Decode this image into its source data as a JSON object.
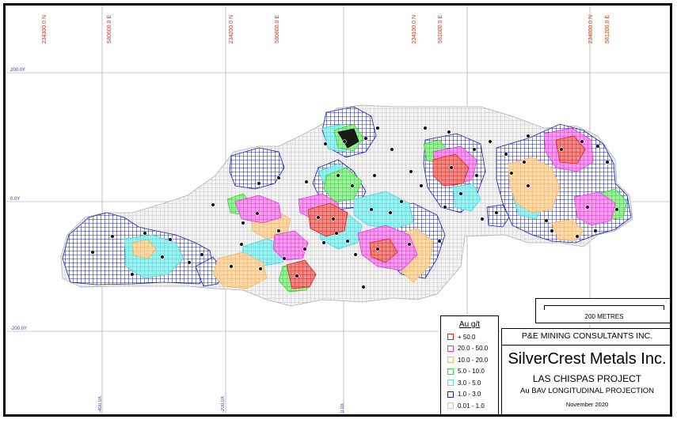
{
  "easting_labels": [
    "234300.0 N",
    "580600.0 E",
    "234200.0 N",
    "580800.0 E",
    "234100.0 N",
    "581000.0 E",
    "234000.0 N",
    "581200.0 E"
  ],
  "elevation_labels": [
    "200.0Y",
    "0.0Y",
    "-200.0Y"
  ],
  "bottom_labels": [
    "-400.0X",
    "-200.0X",
    "0.0X"
  ],
  "legend": {
    "title": "Au g/t",
    "items": [
      {
        "label": "+ 50.0",
        "color": "#e0241c"
      },
      {
        "label": "20.0 - 50.0",
        "color": "#e633d8"
      },
      {
        "label": "10.0 - 20.0",
        "color": "#f5b86a"
      },
      {
        "label": "5.0 - 10.0",
        "color": "#36d83a"
      },
      {
        "label": "3.0 - 5.0",
        "color": "#4fe0e0"
      },
      {
        "label": "1.0 - 3.0",
        "color": "#1a22b8"
      },
      {
        "label": "0.01 - 1.0",
        "color": "#c8c8c8"
      }
    ]
  },
  "scale": {
    "label": "200 METRES"
  },
  "title_block": {
    "consultant": "P&E MINING CONSULTANTS INC.",
    "company": "SilverCrest Metals Inc.",
    "project": "LAS CHISPAS PROJECT",
    "projection": "Au BAV LONGITUDINAL PROJECTION",
    "date": "November 2020"
  }
}
